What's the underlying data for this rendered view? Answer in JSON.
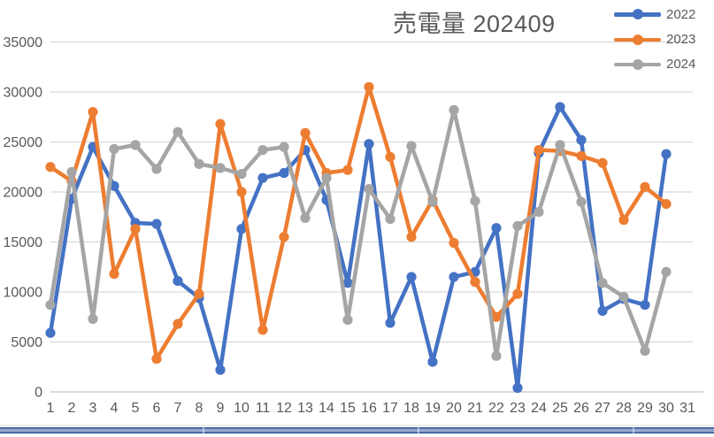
{
  "chart_data": {
    "type": "line",
    "title": "売電量 202409",
    "xlabel": "",
    "ylabel": "",
    "ylim": [
      0,
      35000
    ],
    "ytick_step": 5000,
    "y_ticks": [
      "0",
      "5000",
      "10000",
      "15000",
      "20000",
      "25000",
      "30000",
      "35000"
    ],
    "grid": true,
    "legend_position": "top-right",
    "categories": [
      1,
      2,
      3,
      4,
      5,
      6,
      7,
      8,
      9,
      10,
      11,
      12,
      13,
      14,
      15,
      16,
      17,
      18,
      19,
      20,
      21,
      22,
      23,
      24,
      25,
      26,
      27,
      28,
      29,
      30,
      31
    ],
    "series": [
      {
        "name": "2022",
        "color": "#4472C4",
        "values": [
          5900,
          19300,
          24500,
          20600,
          16900,
          16800,
          11100,
          9400,
          2200,
          16300,
          21400,
          21900,
          24200,
          19200,
          10900,
          24800,
          6900,
          11500,
          3000,
          11500,
          12000,
          16400,
          400,
          23900,
          28500,
          25200,
          8100,
          9300,
          8700,
          23800,
          null
        ]
      },
      {
        "name": "2023",
        "color": "#ED7D31",
        "values": [
          22500,
          21100,
          28000,
          11800,
          16300,
          3300,
          6800,
          9800,
          26800,
          20000,
          6200,
          15500,
          25900,
          21900,
          22200,
          30500,
          23500,
          15500,
          19200,
          14900,
          11000,
          7500,
          9800,
          24200,
          24100,
          23600,
          22900,
          17200,
          20500,
          18800,
          null
        ]
      },
      {
        "name": "2024",
        "color": "#A5A5A5",
        "values": [
          8700,
          22000,
          7300,
          24300,
          24700,
          22300,
          26000,
          22800,
          22400,
          21800,
          24200,
          24500,
          17400,
          21400,
          7200,
          20300,
          17300,
          24600,
          19000,
          28200,
          19100,
          3600,
          16600,
          18000,
          24700,
          19000,
          10900,
          9500,
          4100,
          12000,
          null
        ]
      }
    ]
  },
  "colors": {
    "gridline": "#d9d9d9",
    "zero_axis": "#c3c3c3",
    "axis_text": "#595959",
    "title_text": "#595959",
    "table_border_blue": "#2f5193"
  },
  "table_strip": {
    "separator_positions": [
      229,
      472,
      715
    ]
  }
}
